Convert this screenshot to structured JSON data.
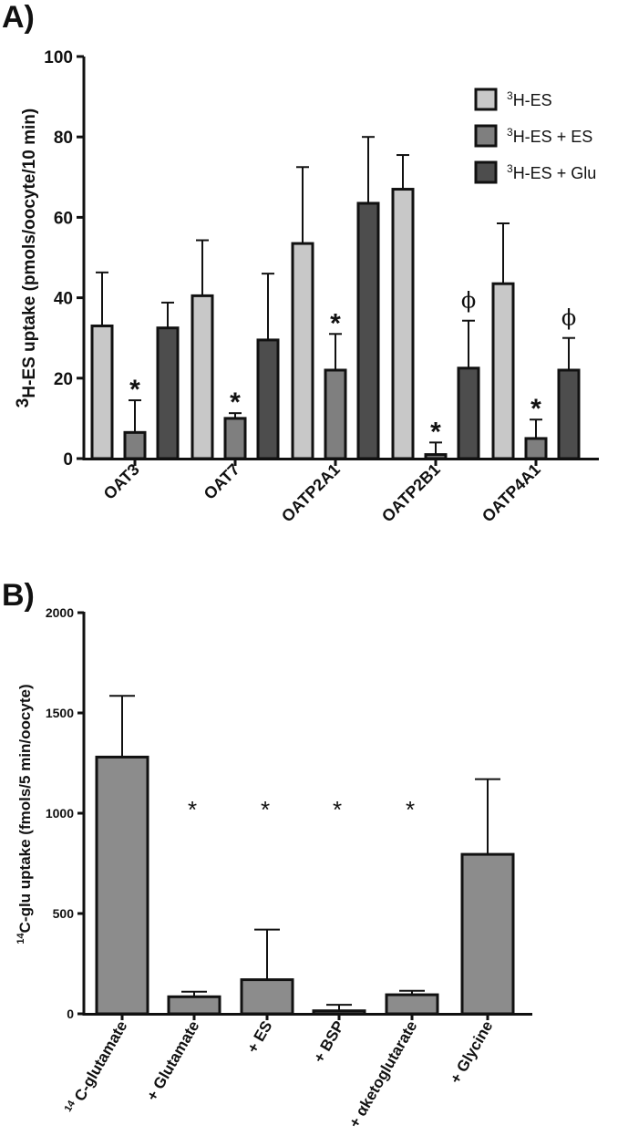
{
  "chart_data": [
    {
      "panel_label": "A)",
      "type": "bar",
      "ylabel_sup": "3",
      "ylabel": "H-ES uptake (pmols/oocyte/10 min)",
      "ylim": [
        0,
        100
      ],
      "yticks": [
        0,
        20,
        40,
        60,
        80,
        100
      ],
      "categories": [
        "OAT3",
        "OAT7",
        "OATP2A1",
        "OATP2B1",
        "OATP4A1"
      ],
      "series": [
        {
          "name_sup": "3",
          "name": "H-ES",
          "color": "#c8c8c8",
          "values": [
            33,
            40.5,
            53.5,
            67,
            43.5
          ],
          "errors": [
            13.3,
            13.8,
            19,
            8.5,
            15
          ]
        },
        {
          "name_sup": "3",
          "name": "H-ES + ES",
          "color": "#7f7f7f",
          "values": [
            6.5,
            10,
            22,
            1,
            5
          ],
          "errors": [
            8,
            1.3,
            9,
            3,
            4.7
          ]
        },
        {
          "name_sup": "3",
          "name": "H-ES + Glu",
          "color": "#4d4d4d",
          "values": [
            32.5,
            29.5,
            63.5,
            22.5,
            22
          ],
          "errors": [
            6.3,
            16.5,
            16.5,
            11.8,
            8
          ]
        }
      ],
      "annotations": [
        {
          "category": "OAT3",
          "series": 1,
          "text": "*"
        },
        {
          "category": "OAT7",
          "series": 1,
          "text": "*"
        },
        {
          "category": "OATP2A1",
          "series": 1,
          "text": "*"
        },
        {
          "category": "OATP2B1",
          "series": 1,
          "text": "*"
        },
        {
          "category": "OATP2B1",
          "series": 2,
          "text": "ϕ"
        },
        {
          "category": "OATP4A1",
          "series": 1,
          "text": "*"
        },
        {
          "category": "OATP4A1",
          "series": 2,
          "text": "ϕ"
        }
      ],
      "legend_position": "top-right"
    },
    {
      "panel_label": "B)",
      "type": "bar",
      "ylabel_sup": "14",
      "ylabel": "C-glu uptake (fmols/5 min/oocyte)",
      "ylim": [
        0,
        2000
      ],
      "yticks": [
        0,
        500,
        1000,
        1500,
        2000
      ],
      "categories": [
        {
          "sup": "14",
          "text": " C-glutamate"
        },
        {
          "sup": "",
          "text": "+ Glutamate"
        },
        {
          "sup": "",
          "text": "+ ES"
        },
        {
          "sup": "",
          "text": "+ BSP"
        },
        {
          "sup": "",
          "text": "+ αketoglutarate"
        },
        {
          "sup": "",
          "text": "+ Glycine"
        }
      ],
      "color": "#8c8c8c",
      "values": [
        1280,
        85,
        170,
        15,
        95,
        795
      ],
      "errors": [
        305,
        25,
        250,
        30,
        20,
        375
      ],
      "annotations": [
        {
          "index": 1,
          "text": "*"
        },
        {
          "index": 2,
          "text": "*"
        },
        {
          "index": 3,
          "text": "*"
        },
        {
          "index": 4,
          "text": "*"
        }
      ]
    }
  ]
}
